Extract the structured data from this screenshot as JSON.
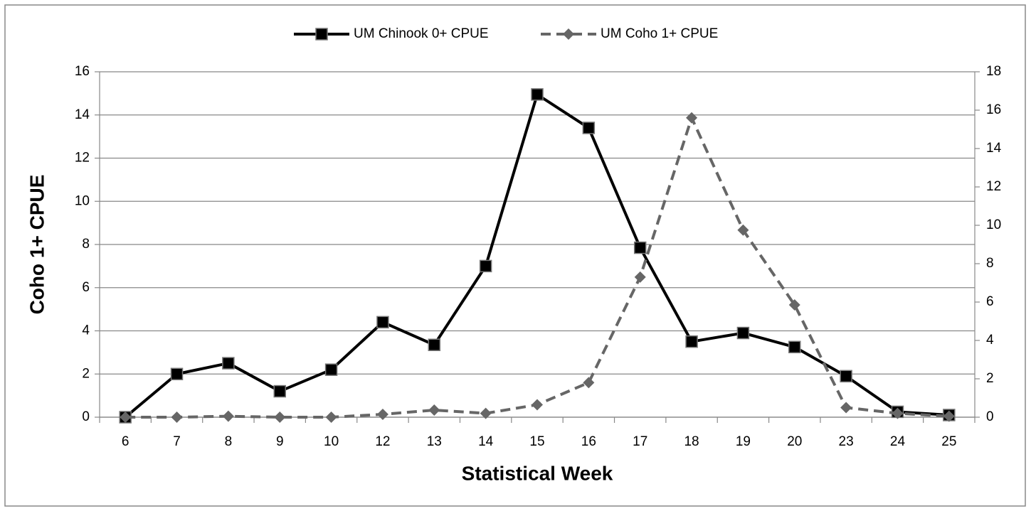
{
  "chart_data": {
    "type": "line",
    "categories": [
      "6",
      "7",
      "8",
      "9",
      "10",
      "12",
      "13",
      "14",
      "15",
      "16",
      "17",
      "18",
      "19",
      "20",
      "23",
      "24",
      "25"
    ],
    "x_label": "Statistical Week",
    "y_label": "Coho 1+ CPUE",
    "series": [
      {
        "name": "UM Chinook 0+ CPUE",
        "color": "#000000",
        "dashed": false,
        "marker": "square",
        "values": [
          0,
          2.0,
          2.5,
          1.2,
          2.2,
          4.4,
          3.35,
          7.0,
          14.95,
          13.4,
          7.85,
          3.5,
          3.9,
          3.25,
          1.9,
          0.25,
          0.1
        ]
      },
      {
        "name": "UM Coho 1+ CPUE",
        "color": "#666666",
        "dashed": true,
        "marker": "diamond",
        "axis": "y2",
        "values": [
          0,
          0,
          0.05,
          0,
          0,
          0.15,
          0.37,
          0.2,
          0.65,
          1.8,
          7.3,
          15.6,
          9.75,
          5.85,
          0.5,
          0.2,
          0.05
        ]
      }
    ],
    "ylim": [
      0,
      16
    ],
    "yticks": [
      0,
      2,
      4,
      6,
      8,
      10,
      12,
      14,
      16
    ],
    "y2lim": [
      0,
      18
    ],
    "y2ticks": [
      0,
      2,
      4,
      6,
      8,
      10,
      12,
      14,
      16,
      18
    ],
    "grid": true,
    "legend": "top"
  }
}
